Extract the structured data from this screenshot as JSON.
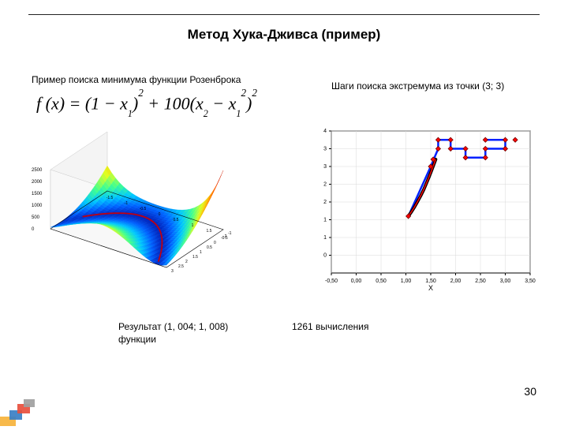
{
  "title": "Метод Хука-Дживса (пример)",
  "subtitle_left": "Пример поиска минимума функции Розенброка",
  "subtitle_right": "Шаги поиска экстремума из точки (3; 3)",
  "formula_parts": {
    "f": "f",
    "open": "(",
    "x": "x",
    "close": ") = (1 − ",
    "x1a": "x",
    "sub1a": "1",
    "after1": ")",
    "sq1": "2",
    "plus": " + 100(",
    "x2": "x",
    "sub2": "2",
    "minus": " − ",
    "x1b": "x",
    "sub1b": "1",
    "sqin": "2",
    "after2": ")",
    "sq2": "2"
  },
  "result_label": "Результат (1, 004; 1, 008)",
  "func_word": "функции",
  "calc_label": "1261 вычисления",
  "page_number": "30",
  "surface": {
    "type": "3d-surface",
    "background": "#ffffff",
    "axis_color": "#000000",
    "grid_color": "#c8c8c8",
    "z_ticks": [
      "2500",
      "2000",
      "1500",
      "1000",
      "500",
      "0"
    ],
    "z_tick_fontsize": 6,
    "x_ticks": [
      "-1.5",
      "-1",
      "-0.5",
      "0",
      "0.5",
      "1",
      "1.5",
      "2"
    ],
    "y_ticks": [
      "-1",
      "-0.5",
      "0",
      "0.5",
      "1",
      "1.5",
      "2",
      "2.5",
      "3"
    ],
    "colormap_stops": [
      "#0018b0",
      "#0060ff",
      "#00c8ff",
      "#40ff90",
      "#e0ff20",
      "#ffb000",
      "#ff5000",
      "#b00010"
    ],
    "has_red_path": true
  },
  "steps_chart": {
    "type": "scatter-line",
    "background": "#ffffff",
    "border_color": "#000000",
    "grid_color": "#d8d8d8",
    "tick_color": "#000000",
    "tick_fontsize": 7,
    "xlabel": "X",
    "ylabel": "",
    "xlim": [
      -0.5,
      3.5
    ],
    "ylim": [
      -0.5,
      3.5
    ],
    "xticks": [
      "-0,50",
      "0,00",
      "0,50",
      "1,00",
      "1,50",
      "2,00",
      "2,50",
      "3,00",
      "3,50"
    ],
    "yticks": [
      "0",
      "1",
      "1",
      "2",
      "2",
      "3",
      "3",
      "4"
    ],
    "blue_color": "#0020ff",
    "blue_linewidth": 2.5,
    "red_marker_color": "#ff0000",
    "red_marker_border": "#700000",
    "red_marker_size": 6,
    "black_curve_color": "#000000",
    "black_curve_linewidth": 4,
    "red_overlay_color": "#ff0000",
    "red_overlay_linewidth": 1.5,
    "blue_segments": [
      [
        [
          2.6,
          3.25
        ],
        [
          3.0,
          3.25
        ]
      ],
      [
        [
          3.0,
          3.25
        ],
        [
          3.0,
          3.0
        ]
      ],
      [
        [
          3.0,
          3.0
        ],
        [
          2.6,
          3.0
        ]
      ],
      [
        [
          2.6,
          3.0
        ],
        [
          2.6,
          2.75
        ]
      ],
      [
        [
          2.6,
          2.75
        ],
        [
          2.2,
          2.75
        ]
      ],
      [
        [
          2.2,
          2.75
        ],
        [
          2.2,
          3.0
        ]
      ],
      [
        [
          2.2,
          3.0
        ],
        [
          1.9,
          3.0
        ]
      ],
      [
        [
          1.9,
          3.0
        ],
        [
          1.9,
          3.25
        ]
      ],
      [
        [
          1.9,
          3.25
        ],
        [
          1.65,
          3.25
        ]
      ],
      [
        [
          1.65,
          3.25
        ],
        [
          1.65,
          3.0
        ]
      ],
      [
        [
          1.65,
          3.0
        ],
        [
          1.5,
          2.5
        ]
      ],
      [
        [
          1.5,
          2.5
        ],
        [
          1.05,
          1.1
        ]
      ]
    ],
    "red_points": [
      [
        3.2,
        3.25
      ],
      [
        3.0,
        3.25
      ],
      [
        3.0,
        3.0
      ],
      [
        2.6,
        3.25
      ],
      [
        2.6,
        3.0
      ],
      [
        2.6,
        2.75
      ],
      [
        2.2,
        2.75
      ],
      [
        2.2,
        3.0
      ],
      [
        1.9,
        3.25
      ],
      [
        1.9,
        3.0
      ],
      [
        1.65,
        3.25
      ],
      [
        1.65,
        3.0
      ],
      [
        1.55,
        2.7
      ],
      [
        1.5,
        2.5
      ],
      [
        1.05,
        1.1
      ]
    ],
    "black_curve": [
      [
        1.6,
        2.7
      ],
      [
        1.56,
        2.55
      ],
      [
        1.52,
        2.4
      ],
      [
        1.47,
        2.22
      ],
      [
        1.42,
        2.05
      ],
      [
        1.36,
        1.85
      ],
      [
        1.3,
        1.68
      ],
      [
        1.23,
        1.5
      ],
      [
        1.17,
        1.35
      ],
      [
        1.11,
        1.22
      ],
      [
        1.05,
        1.1
      ]
    ]
  },
  "decoration": {
    "colors": [
      "#f6b33c",
      "#3a7fc4",
      "#e84f3d",
      "#9f9f9f"
    ]
  }
}
